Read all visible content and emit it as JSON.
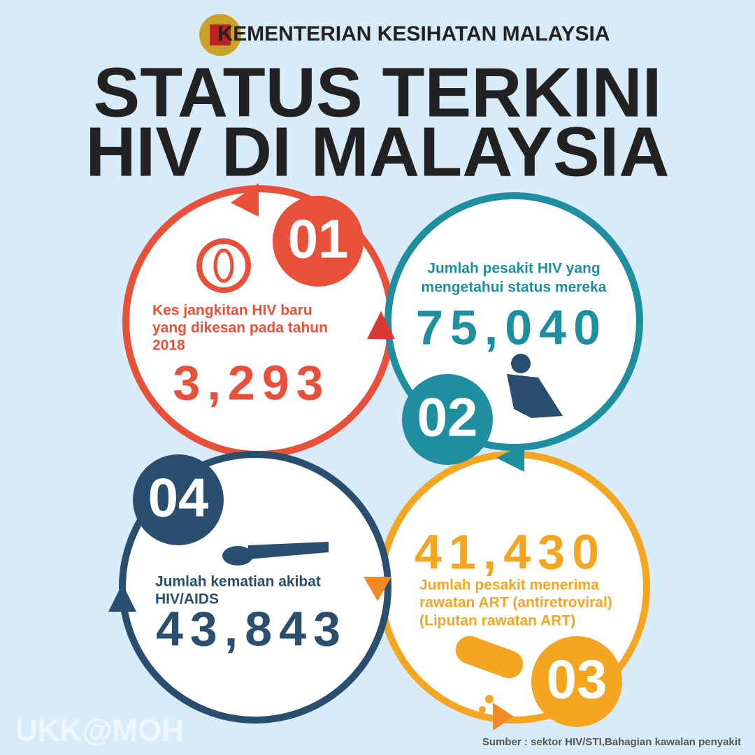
{
  "header": {
    "ministry": "KEMENTERIAN KESIHATAN MALAYSIA",
    "title": [
      "STATUS TERKINI",
      "HIV DI MALAYSIA"
    ]
  },
  "items": [
    {
      "number": "01",
      "label": [
        "Kes jangkitan HIV baru",
        "yang dikesan pada tahun",
        "2018"
      ],
      "value": "3,293"
    },
    {
      "number": "02",
      "label": [
        "Jumlah pesakit HIV yang",
        "mengetahui status mereka"
      ],
      "value": "75,040"
    },
    {
      "number": "03",
      "label": [
        "Jumlah pesakit menerima",
        "rawatan ART (antiretroviral)",
        "(Liputan rawatan ART)"
      ],
      "value": "41,430"
    },
    {
      "number": "04",
      "label": [
        "Jumlah kematian akibat",
        "HIV/AIDS"
      ],
      "value": "43,843"
    }
  ],
  "watermark": "UKK@MOH",
  "source": "Sumber : sektor HIV/STI,Bahagian kawalan penyakit"
}
